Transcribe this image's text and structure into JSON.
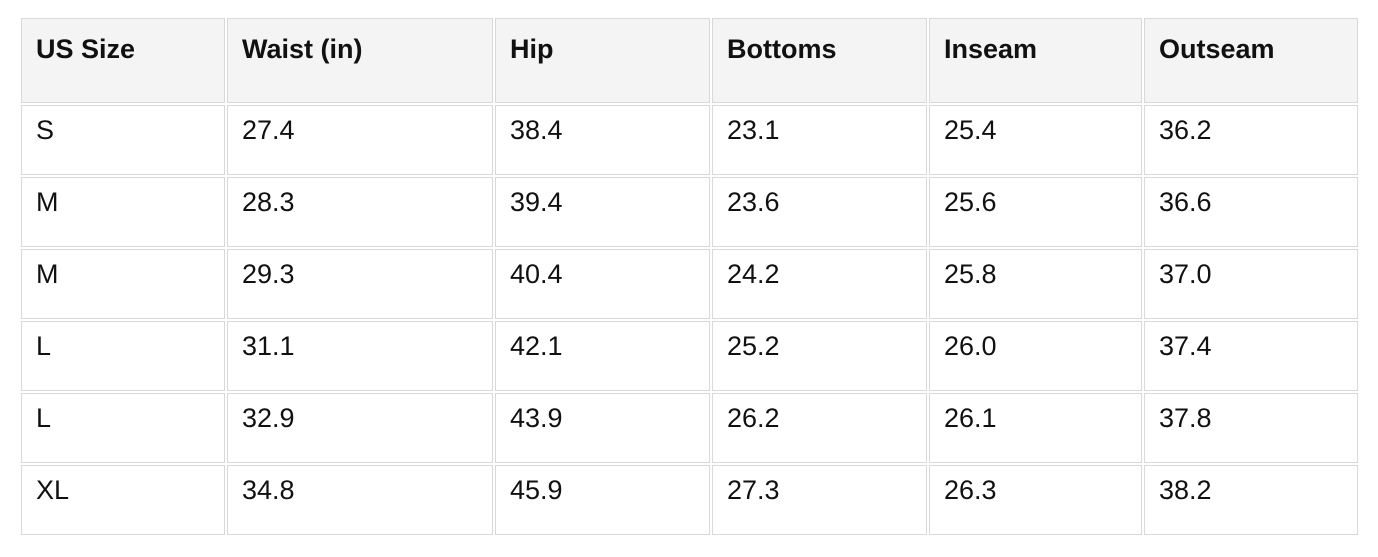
{
  "chart_data": {
    "type": "table",
    "columns": [
      "US Size",
      "Waist (in)",
      "Hip",
      "Bottoms",
      "Inseam",
      "Outseam"
    ],
    "rows": [
      [
        "S",
        "27.4",
        "38.4",
        "23.1",
        "25.4",
        "36.2"
      ],
      [
        "M",
        "28.3",
        "39.4",
        "23.6",
        "25.6",
        "36.6"
      ],
      [
        "M",
        "29.3",
        "40.4",
        "24.2",
        "25.8",
        "37.0"
      ],
      [
        "L",
        "31.1",
        "42.1",
        "25.2",
        "26.0",
        "37.4"
      ],
      [
        "L",
        "32.9",
        "43.9",
        "26.2",
        "26.1",
        "37.8"
      ],
      [
        "XL",
        "34.8",
        "45.9",
        "27.3",
        "26.3",
        "38.2"
      ]
    ]
  },
  "colors": {
    "header_background": "#f4f4f4",
    "cell_background": "#ffffff",
    "border": "#d9d9d9",
    "text": "#111111",
    "page_background": "#ffffff"
  }
}
